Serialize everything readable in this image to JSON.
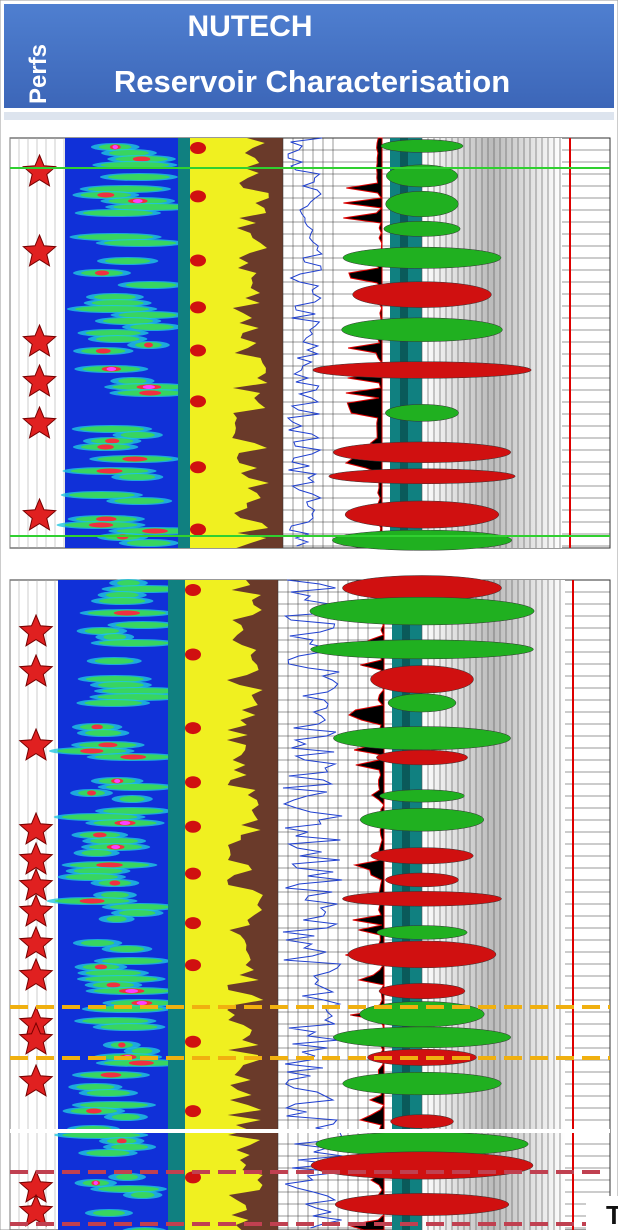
{
  "header": {
    "side_label": "Perfs",
    "title": "NUTECH",
    "subtitle": "Reservoir Characterisation"
  },
  "corner_label": "T"
}
